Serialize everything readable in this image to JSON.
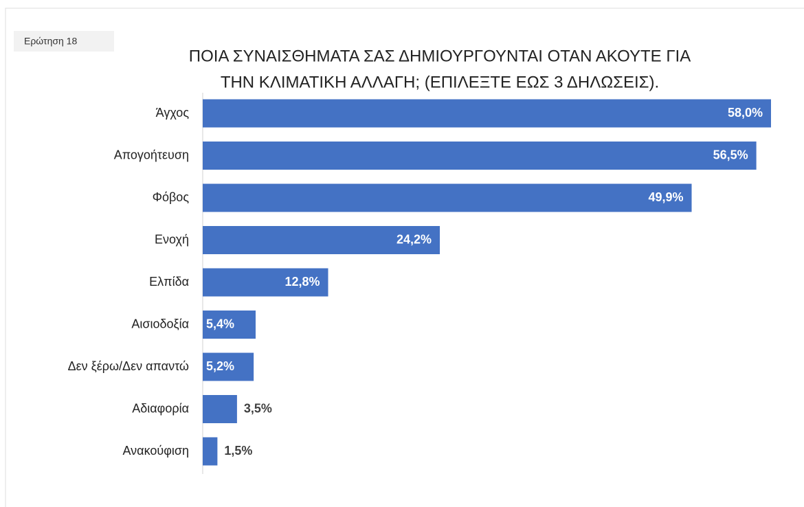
{
  "question_tag": "Ερώτηση 18",
  "chart_data": {
    "type": "bar",
    "orientation": "horizontal",
    "title": [
      "ΠΟΙΑ ΣΥΝΑΙΣΘΗΜΑΤΑ ΣΑΣ ΔΗΜΙΟΥΡΓΟΥΝΤΑΙ ΟΤΑΝ ΑΚΟΥΤΕ ΓΙΑ",
      "ΤΗΝ ΚΛΙΜΑΤΙΚΗ ΑΛΛΑΓΗ; (ΕΠΙΛΕΞΤΕ ΕΩΣ 3 ΔΗΛΩΣΕΙΣ)."
    ],
    "categories": [
      "Άγχος",
      "Απογοήτευση",
      "Φόβος",
      "Ενοχή",
      "Ελπίδα",
      "Αισιοδοξία",
      "Δεν ξέρω/Δεν απαντώ",
      "Αδιαφορία",
      "Ανακούφιση"
    ],
    "values": [
      58.0,
      56.5,
      49.9,
      24.2,
      12.8,
      5.4,
      5.2,
      3.5,
      1.5
    ],
    "value_labels": [
      "58,0%",
      "56,5%",
      "49,9%",
      "24,2%",
      "12,8%",
      "5,4%",
      "5,2%",
      "3,5%",
      "1,5%"
    ],
    "color": "#4472c4"
  }
}
